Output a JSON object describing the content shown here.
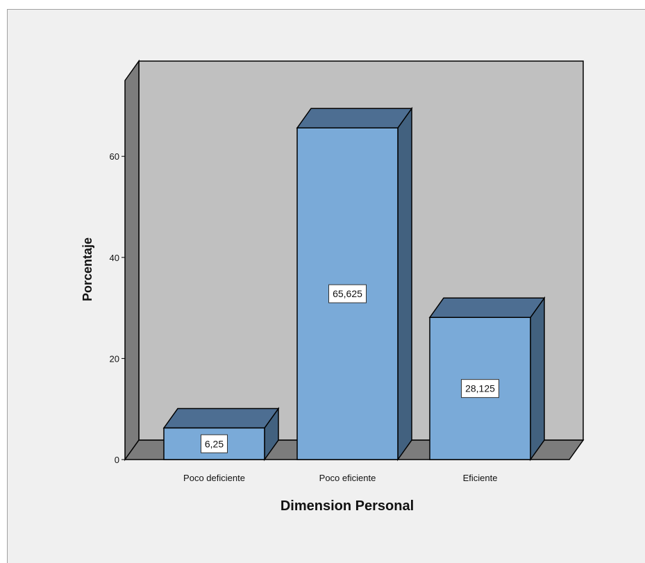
{
  "chart_data": {
    "type": "bar",
    "style": "3d",
    "categories": [
      "Poco deficiente",
      "Poco eficiente",
      "Eficiente"
    ],
    "values": [
      6.25,
      65.625,
      28.125
    ],
    "value_labels": [
      "6,25",
      "65,625",
      "28,125"
    ],
    "xlabel": "Dimension Personal",
    "ylabel": "Porcentaje",
    "yticks": [
      "0",
      "20",
      "40",
      "60"
    ],
    "ylim": [
      0,
      75
    ],
    "colors": {
      "bar_front": "#7aaad8",
      "bar_top": "#4d6e92",
      "bar_side": "#42617f",
      "back_wall": "#c0c0c0",
      "left_wall": "#7c7c7c",
      "floor": "#7c7c7c",
      "background": "#f0f0f0"
    }
  }
}
